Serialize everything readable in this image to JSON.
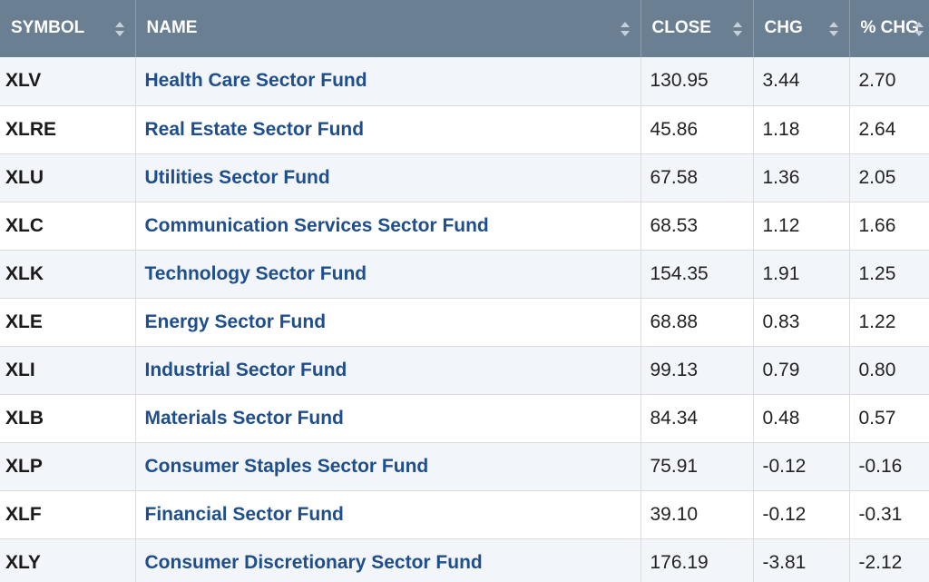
{
  "table": {
    "columns": [
      {
        "key": "symbol",
        "label": "SYMBOL"
      },
      {
        "key": "name",
        "label": "NAME"
      },
      {
        "key": "close",
        "label": "CLOSE"
      },
      {
        "key": "chg",
        "label": "CHG"
      },
      {
        "key": "pct_chg",
        "label": "% CHG"
      }
    ],
    "rows": [
      {
        "symbol": "XLV",
        "name": "Health Care Sector Fund",
        "close": "130.95",
        "chg": "3.44",
        "pct_chg": "2.70"
      },
      {
        "symbol": "XLRE",
        "name": "Real Estate Sector Fund",
        "close": "45.86",
        "chg": "1.18",
        "pct_chg": "2.64"
      },
      {
        "symbol": "XLU",
        "name": "Utilities Sector Fund",
        "close": "67.58",
        "chg": "1.36",
        "pct_chg": "2.05"
      },
      {
        "symbol": "XLC",
        "name": "Communication Services Sector Fund",
        "close": "68.53",
        "chg": "1.12",
        "pct_chg": "1.66"
      },
      {
        "symbol": "XLK",
        "name": "Technology Sector Fund",
        "close": "154.35",
        "chg": "1.91",
        "pct_chg": "1.25"
      },
      {
        "symbol": "XLE",
        "name": "Energy Sector Fund",
        "close": "68.88",
        "chg": "0.83",
        "pct_chg": "1.22"
      },
      {
        "symbol": "XLI",
        "name": "Industrial Sector Fund",
        "close": "99.13",
        "chg": "0.79",
        "pct_chg": "0.80"
      },
      {
        "symbol": "XLB",
        "name": "Materials Sector Fund",
        "close": "84.34",
        "chg": "0.48",
        "pct_chg": "0.57"
      },
      {
        "symbol": "XLP",
        "name": "Consumer Staples Sector Fund",
        "close": "75.91",
        "chg": "-0.12",
        "pct_chg": "-0.16"
      },
      {
        "symbol": "XLF",
        "name": "Financial Sector Fund",
        "close": "39.10",
        "chg": "-0.12",
        "pct_chg": "-0.31"
      },
      {
        "symbol": "XLY",
        "name": "Consumer Discretionary Sector Fund",
        "close": "176.19",
        "chg": "-3.81",
        "pct_chg": "-2.12"
      }
    ]
  },
  "colors": {
    "header_bg": "#6b7f92",
    "link": "#1f4e8c",
    "row_alt": "#f2f6fb"
  },
  "icons": {
    "sort": "sort-arrows-icon"
  }
}
